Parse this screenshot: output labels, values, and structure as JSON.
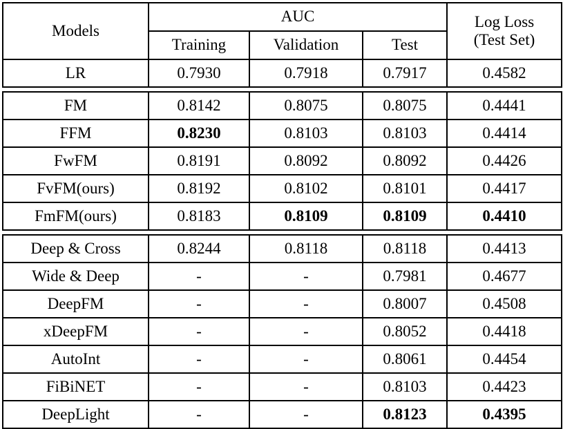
{
  "table": {
    "header": {
      "models_label": "Models",
      "auc_group_label": "AUC",
      "auc_subcolumns": [
        "Training",
        "Validation",
        "Test"
      ],
      "logloss_line1": "Log Loss",
      "logloss_line2": "(Test Set)"
    },
    "columns": [
      "Models",
      "AUC Training",
      "AUC Validation",
      "AUC Test",
      "Log Loss (Test Set)"
    ],
    "sections": [
      {
        "name": "linear-baseline",
        "rows": [
          {
            "cells": [
              "LR",
              "0.7930",
              "0.7918",
              "0.7917",
              "0.4582"
            ],
            "bold": []
          }
        ]
      },
      {
        "name": "fm-family",
        "rows": [
          {
            "cells": [
              "FM",
              "0.8142",
              "0.8075",
              "0.8075",
              "0.4441"
            ],
            "bold": []
          },
          {
            "cells": [
              "FFM",
              "0.8230",
              "0.8103",
              "0.8103",
              "0.4414"
            ],
            "bold": [
              1
            ]
          },
          {
            "cells": [
              "FwFM",
              "0.8191",
              "0.8092",
              "0.8092",
              "0.4426"
            ],
            "bold": []
          },
          {
            "cells": [
              "FvFM(ours)",
              "0.8192",
              "0.8102",
              "0.8101",
              "0.4417"
            ],
            "bold": []
          },
          {
            "cells": [
              "FmFM(ours)",
              "0.8183",
              "0.8109",
              "0.8109",
              "0.4410"
            ],
            "bold": [
              2,
              3,
              4
            ]
          }
        ]
      },
      {
        "name": "deep-models",
        "rows": [
          {
            "cells": [
              "Deep & Cross",
              "0.8244",
              "0.8118",
              "0.8118",
              "0.4413"
            ],
            "bold": []
          },
          {
            "cells": [
              "Wide & Deep",
              "-",
              "-",
              "0.7981",
              "0.4677"
            ],
            "bold": []
          },
          {
            "cells": [
              "DeepFM",
              "-",
              "-",
              "0.8007",
              "0.4508"
            ],
            "bold": []
          },
          {
            "cells": [
              "xDeepFM",
              "-",
              "-",
              "0.8052",
              "0.4418"
            ],
            "bold": []
          },
          {
            "cells": [
              "AutoInt",
              "-",
              "-",
              "0.8061",
              "0.4454"
            ],
            "bold": []
          },
          {
            "cells": [
              "FiBiNET",
              "-",
              "-",
              "0.8103",
              "0.4423"
            ],
            "bold": []
          },
          {
            "cells": [
              "DeepLight",
              "-",
              "-",
              "0.8123",
              "0.4395"
            ],
            "bold": [
              3,
              4
            ]
          }
        ]
      }
    ],
    "colors": {
      "border": "#000000",
      "text": "#000000",
      "background": "#ffffff"
    }
  }
}
